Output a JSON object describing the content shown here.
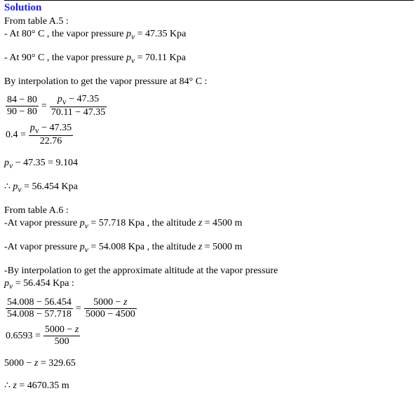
{
  "colors": {
    "title": "#1a1aff",
    "text": "#000000",
    "bg": "#ffffff"
  },
  "fontsize": {
    "body": 14,
    "title": 15
  },
  "title": "Solution",
  "intro1": "From table A.5 :",
  "pt1a": "- At 80° C , the vapor pressure ",
  "pv": "p",
  "pvsub": "v",
  "pt1b": " = 47.35 Kpa",
  "pt2a": "- At 90° C , the vapor pressure ",
  "pt2b": " = 70.11 Kpa",
  "interp1": "By interpolation to get the vapor pressure at 84° C :",
  "eq1": {
    "l_num": "84 − 80",
    "l_den": "90 − 80",
    "r_num_a": " − 47.35",
    "r_den": "70.11 − 47.35"
  },
  "eq2": {
    "lhs": "0.4 = ",
    "num_a": " − 47.35",
    "den": "22.76"
  },
  "eq3a": " − 47.35 = 9.104",
  "eq4a": "∴ ",
  "eq4b": " = 56.454 Kpa",
  "intro2": "From table A.6 :",
  "pt3a": "-At vapor pressure ",
  "pt3b": " = 57.718 Kpa , the altitude ",
  "z": "z",
  "pt3c": " = 4500 m",
  "pt4a": "-At vapor pressure ",
  "pt4b": " = 54.008 Kpa , the altitude ",
  "pt4c": " = 5000 m",
  "interp2a": "-By interpolation to get the approximate altitude at the vapor pressure",
  "interp2b": " = 56.454 Kpa :",
  "eq5": {
    "l_num": "54.008 − 56.454",
    "l_den": "54.008 − 57.718",
    "r_num": "5000 − ",
    "r_den": "5000 − 4500"
  },
  "eq6": {
    "lhs": "0.6593 = ",
    "num": "5000 − ",
    "den": "500"
  },
  "eq7a": "5000 − ",
  "eq7b": " = 329.65",
  "eq8a": "∴ ",
  "eq8b": " = 4670.35 m"
}
